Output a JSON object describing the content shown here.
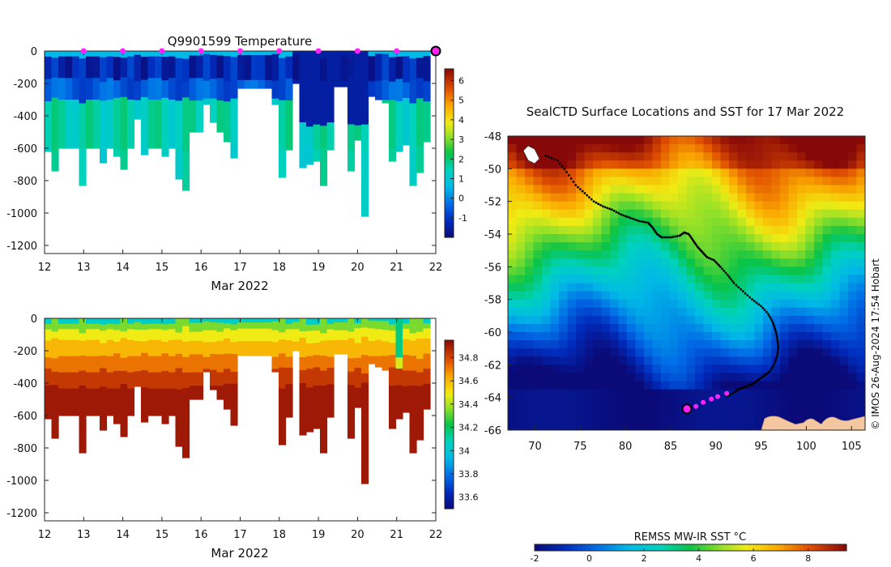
{
  "chart_data": [
    {
      "type": "heatmap",
      "title": "Q9901599  Temperature",
      "xlabel": "Mar 2022",
      "ylabel": "",
      "xlim": [
        12,
        22
      ],
      "ylim": [
        -1250,
        0
      ],
      "x_ticks": [
        "12",
        "13",
        "14",
        "15",
        "16",
        "17",
        "18",
        "19",
        "20",
        "21",
        "22"
      ],
      "y_ticks": [
        "0",
        "-200",
        "-400",
        "-600",
        "-800",
        "-1000",
        "-1200"
      ],
      "y_tick_values": [
        0,
        -200,
        -400,
        -600,
        -800,
        -1000,
        -1200
      ],
      "colorbar": {
        "min": -2,
        "max": 6.6,
        "ticks": [
          "6",
          "5",
          "4",
          "3",
          "2",
          "1",
          "0",
          "-1"
        ],
        "tick_values": [
          6,
          5,
          4,
          3,
          2,
          1,
          0,
          -1
        ]
      },
      "surfacing_markers_day": [
        13,
        14,
        15,
        16,
        17,
        18,
        19,
        20,
        21
      ],
      "last_position_marker_day": 22,
      "profile_max_depth_m": [
        620,
        740,
        600,
        600,
        600,
        830,
        600,
        600,
        690,
        600,
        650,
        730,
        600,
        420,
        640,
        600,
        600,
        650,
        600,
        790,
        860,
        500,
        500,
        330,
        440,
        500,
        560,
        660,
        230,
        230,
        230,
        230,
        230,
        330,
        780,
        610,
        200,
        720,
        700,
        680,
        830,
        610,
        220,
        220,
        740,
        550,
        1020,
        280,
        300,
        320,
        680,
        620,
        580,
        830,
        750,
        560
      ]
    },
    {
      "type": "heatmap",
      "title": "",
      "xlabel": "Mar 2022",
      "ylabel": "",
      "xlim": [
        12,
        22
      ],
      "ylim": [
        -1250,
        0
      ],
      "x_ticks": [
        "12",
        "13",
        "14",
        "15",
        "16",
        "17",
        "18",
        "19",
        "20",
        "21",
        "22"
      ],
      "y_ticks": [
        "0",
        "-200",
        "-400",
        "-600",
        "-800",
        "-1000",
        "-1200"
      ],
      "y_tick_values": [
        0,
        -200,
        -400,
        -600,
        -800,
        -1000,
        -1200
      ],
      "colorbar": {
        "min": 33.5,
        "max": 34.95,
        "ticks": [
          "34.8",
          "34.6",
          "34.4",
          "34.2",
          "34",
          "33.8",
          "33.6"
        ],
        "tick_values": [
          34.8,
          34.6,
          34.4,
          34.2,
          34,
          33.8,
          33.6
        ]
      }
    },
    {
      "type": "scatter",
      "title": "SealCTD Surface Locations and SST for 17 Mar 2022",
      "xlabel": "",
      "ylabel": "",
      "xlim": [
        67,
        106.5
      ],
      "ylim": [
        -66,
        -48
      ],
      "x_ticks": [
        "70",
        "75",
        "80",
        "85",
        "90",
        "95",
        "100",
        "105"
      ],
      "x_tick_values": [
        70,
        75,
        80,
        85,
        90,
        95,
        100,
        105
      ],
      "y_ticks": [
        "-48",
        "-50",
        "-52",
        "-54",
        "-56",
        "-58",
        "-60",
        "-62",
        "-64",
        "-66"
      ],
      "y_tick_values": [
        -48,
        -50,
        -52,
        -54,
        -56,
        -58,
        -60,
        -62,
        -64,
        -66
      ],
      "track_lon": [
        71.2,
        72.5,
        73.5,
        74.5,
        75.5,
        76.5,
        77.5,
        78.5,
        79.5,
        80.5,
        81.5,
        82.5,
        83,
        83.5,
        84,
        85,
        86,
        86.5,
        87,
        87.5,
        88,
        88.5,
        89,
        89.8,
        90.5,
        91.3,
        92,
        93,
        94,
        95,
        95.8,
        96.3,
        96.6,
        96.8,
        96.9,
        96.8,
        96.5,
        96,
        95.5,
        95,
        94.5,
        94,
        93.5,
        93,
        92.5,
        92,
        91
      ],
      "track_lat": [
        -49.2,
        -49.5,
        -50.2,
        -51,
        -51.5,
        -52,
        -52.3,
        -52.5,
        -52.8,
        -53,
        -53.2,
        -53.3,
        -53.6,
        -54,
        -54.2,
        -54.2,
        -54.1,
        -53.9,
        -54,
        -54.4,
        -54.8,
        -55.1,
        -55.4,
        -55.6,
        -56,
        -56.5,
        -57,
        -57.5,
        -58,
        -58.4,
        -58.9,
        -59.4,
        -59.9,
        -60.4,
        -60.9,
        -61.4,
        -61.9,
        -62.4,
        -62.6,
        -62.8,
        -63,
        -63.2,
        -63.3,
        -63.4,
        -63.5,
        -63.7,
        -64
      ]
    }
  ],
  "map_colorbar": {
    "label": "REMSS MW-IR SST °C",
    "min": -2,
    "max": 9.4,
    "ticks": [
      "-2",
      "0",
      "2",
      "4",
      "6",
      "8"
    ],
    "tick_values": [
      -2,
      0,
      2,
      4,
      6,
      8
    ]
  },
  "recent_positions": {
    "lon": [
      86.8,
      87.8,
      88.6,
      89.5,
      90.2,
      91.2
    ],
    "lat": [
      -64.7,
      -64.55,
      -64.3,
      -64.1,
      -63.95,
      -63.75
    ]
  },
  "credit": "© IMOS 26-Aug-2024 17:54 Hobart",
  "colors": {
    "surfacing_marker": "#ff22ff",
    "track": "#000000",
    "land": "#f5c7a0"
  }
}
